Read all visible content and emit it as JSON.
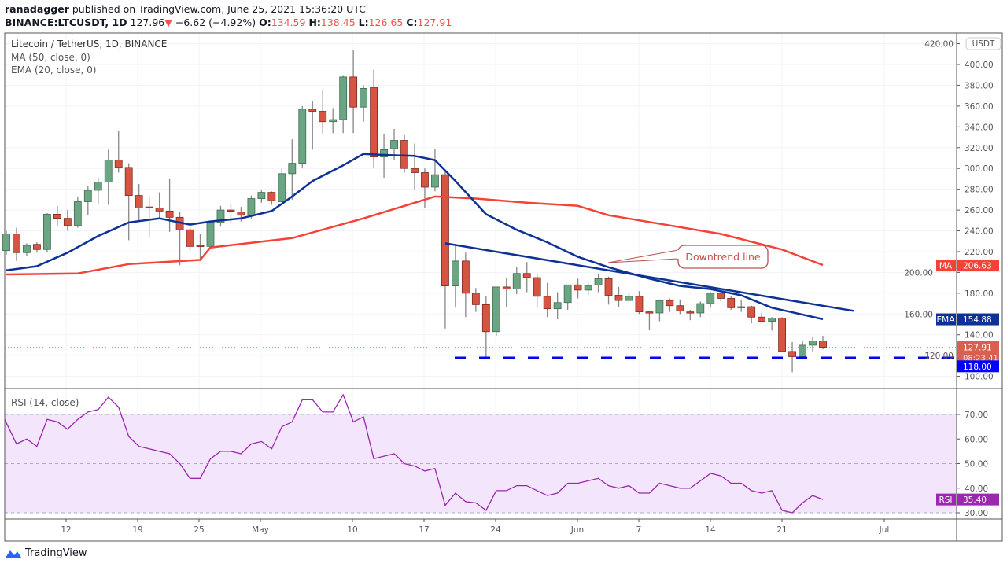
{
  "header": {
    "author": "ranadagger",
    "published_text": "published on TradingView.com, June 25, 2021 15:36:20 UTC",
    "symbol": "BINANCE:LTCUSDT, 1D",
    "last": "127.96",
    "change": "−6.62 (−4.92%)",
    "o_label": "O:",
    "o": "134.59",
    "h_label": "H:",
    "h": "138.45",
    "l_label": "L:",
    "l": "126.65",
    "c_label": "C:",
    "c": "127.91"
  },
  "legend": {
    "title": "Litecoin / TetherUS, 1D, BINANCE",
    "ma": "MA (50, close, 0)",
    "ema": "EMA (20, close, 0)",
    "rsi": "RSI (14, close)"
  },
  "footer": {
    "brand": "TradingView"
  },
  "colors": {
    "up": "#6ba583",
    "down": "#d75442",
    "ema": "#0d3196",
    "ma": "#f44336",
    "rsi": "#9c27b0",
    "support": "#0000ff"
  },
  "chart_data": [
    {
      "type": "candlestick",
      "title": "Litecoin / TetherUS, 1D, BINANCE",
      "currency_label": "USDT",
      "x_ticks": [
        "12",
        "19",
        "25",
        "May",
        "10",
        "17",
        "24",
        "Jun",
        "7",
        "14",
        "21",
        "Jul"
      ],
      "y_ticks": [
        "420.00",
        "400.00",
        "380.00",
        "360.00",
        "340.00",
        "320.00",
        "300.00",
        "280.00",
        "260.00",
        "240.00",
        "220.00",
        "200.00",
        "180.00",
        "160.00",
        "140.00",
        "120.00",
        "100.00"
      ],
      "ylim": [
        95,
        420
      ],
      "ohlc": [
        [
          221,
          240,
          217,
          237
        ],
        [
          237,
          243,
          211,
          219
        ],
        [
          219,
          228,
          216,
          226
        ],
        [
          227,
          229,
          219,
          222
        ],
        [
          222,
          257,
          219,
          256
        ],
        [
          256,
          264,
          244,
          252
        ],
        [
          252,
          260,
          240,
          245
        ],
        [
          245,
          273,
          243,
          268
        ],
        [
          268,
          283,
          255,
          279
        ],
        [
          279,
          291,
          266,
          287
        ],
        [
          287,
          318,
          265,
          308
        ],
        [
          308,
          336,
          296,
          301
        ],
        [
          301,
          305,
          231,
          274
        ],
        [
          274,
          285,
          250,
          262
        ],
        [
          263,
          273,
          234,
          262
        ],
        [
          262,
          277,
          251,
          259
        ],
        [
          259,
          290,
          239,
          253
        ],
        [
          253,
          258,
          207,
          241
        ],
        [
          241,
          243,
          221,
          225
        ],
        [
          226,
          237,
          211,
          225
        ],
        [
          225,
          249,
          223,
          248
        ],
        [
          248,
          264,
          244,
          260
        ],
        [
          260,
          266,
          248,
          259
        ],
        [
          258,
          263,
          249,
          255
        ],
        [
          255,
          274,
          252,
          271
        ],
        [
          271,
          279,
          267,
          277
        ],
        [
          277,
          278,
          265,
          269
        ],
        [
          268,
          300,
          268,
          295
        ],
        [
          295,
          328,
          270,
          305
        ],
        [
          305,
          360,
          301,
          357
        ],
        [
          357,
          365,
          318,
          355
        ],
        [
          355,
          375,
          333,
          345
        ],
        [
          345,
          358,
          334,
          347
        ],
        [
          347,
          389,
          334,
          388
        ],
        [
          388,
          414,
          334,
          359
        ],
        [
          359,
          380,
          345,
          377
        ],
        [
          378,
          395,
          301,
          311
        ],
        [
          311,
          333,
          291,
          318
        ],
        [
          319,
          338,
          308,
          327
        ],
        [
          327,
          332,
          296,
          300
        ],
        [
          300,
          324,
          280,
          296
        ],
        [
          296,
          300,
          262,
          282
        ],
        [
          282,
          319,
          278,
          294
        ],
        [
          294,
          299,
          146,
          187
        ],
        [
          187,
          226,
          167,
          211
        ],
        [
          211,
          219,
          157,
          180
        ],
        [
          180,
          185,
          162,
          169
        ],
        [
          169,
          177,
          118,
          143
        ],
        [
          143,
          186,
          139,
          186
        ],
        [
          186,
          195,
          167,
          184
        ],
        [
          184,
          205,
          179,
          199
        ],
        [
          199,
          210,
          181,
          195
        ],
        [
          195,
          199,
          166,
          177
        ],
        [
          177,
          190,
          157,
          165
        ],
        [
          165,
          181,
          155,
          171
        ],
        [
          171,
          188,
          164,
          188
        ],
        [
          188,
          194,
          175,
          183
        ],
        [
          183,
          191,
          178,
          187
        ],
        [
          188,
          199,
          181,
          194
        ],
        [
          194,
          196,
          169,
          178
        ],
        [
          178,
          186,
          167,
          173
        ],
        [
          173,
          180,
          172,
          177
        ],
        [
          177,
          182,
          160,
          162
        ],
        [
          162,
          163,
          145,
          161
        ],
        [
          161,
          174,
          153,
          173
        ],
        [
          173,
          175,
          162,
          168
        ],
        [
          168,
          174,
          160,
          163
        ],
        [
          162,
          164,
          154,
          161
        ],
        [
          161,
          172,
          157,
          170
        ],
        [
          170,
          181,
          166,
          180
        ],
        [
          180,
          181,
          172,
          175
        ],
        [
          175,
          177,
          164,
          166
        ],
        [
          166,
          174,
          162,
          167
        ],
        [
          167,
          168,
          151,
          157
        ],
        [
          157,
          161,
          153,
          153
        ],
        [
          153,
          157,
          144,
          156
        ],
        [
          156,
          157,
          124,
          124
        ],
        [
          124,
          133,
          104,
          119
        ],
        [
          119,
          134,
          118,
          130
        ],
        [
          130,
          138,
          124,
          134
        ],
        [
          134,
          139,
          126,
          128
        ]
      ],
      "ema20": [
        [
          0,
          202
        ],
        [
          3,
          206
        ],
        [
          6,
          219
        ],
        [
          9,
          235
        ],
        [
          12,
          248
        ],
        [
          15,
          252
        ],
        [
          18,
          246
        ],
        [
          20,
          249
        ],
        [
          23,
          252
        ],
        [
          26,
          259
        ],
        [
          28,
          273
        ],
        [
          30,
          288
        ],
        [
          33,
          303
        ],
        [
          35,
          314
        ],
        [
          37,
          313
        ],
        [
          40,
          312
        ],
        [
          42,
          308
        ],
        [
          44,
          288
        ],
        [
          47,
          256
        ],
        [
          50,
          241
        ],
        [
          53,
          229
        ],
        [
          56,
          215
        ],
        [
          59,
          205
        ],
        [
          63,
          194
        ],
        [
          66,
          187
        ],
        [
          69,
          184
        ],
        [
          72,
          178
        ],
        [
          75,
          166
        ],
        [
          80,
          155
        ]
      ],
      "ma50": [
        [
          0,
          198
        ],
        [
          7,
          199
        ],
        [
          12,
          208
        ],
        [
          19,
          212
        ],
        [
          20,
          224
        ],
        [
          28,
          233
        ],
        [
          35,
          252
        ],
        [
          42,
          273
        ],
        [
          46,
          271
        ],
        [
          51,
          267
        ],
        [
          56,
          264
        ],
        [
          59,
          255
        ],
        [
          70,
          237
        ],
        [
          76,
          222
        ],
        [
          80,
          207
        ]
      ],
      "downtrend_line": {
        "from": [
          43,
          228
        ],
        "to": [
          83,
          163
        ],
        "annotation": "Downtrend line"
      },
      "support_level": 118.0,
      "current_price": 127.91,
      "badges": {
        "ma": {
          "label": "MA",
          "value": "206.63"
        },
        "ema": {
          "label": "EMA",
          "value": "154.88"
        },
        "price": {
          "value": "127.91",
          "countdown": "08:23:41"
        },
        "support": {
          "value": "118.00"
        }
      }
    },
    {
      "type": "line",
      "title": "RSI (14, close)",
      "y_ticks": [
        "70.00",
        "60.00",
        "50.00",
        "40.00",
        "30.00"
      ],
      "band": [
        30,
        70
      ],
      "values": [
        68,
        58,
        60,
        57,
        68,
        67,
        64,
        68,
        71,
        72,
        77,
        73,
        61,
        57,
        56,
        55,
        54,
        50,
        44,
        44,
        52,
        55,
        55,
        54,
        58,
        59,
        56,
        65,
        67,
        76,
        76,
        71,
        71,
        78,
        67,
        69,
        52,
        53,
        54,
        50,
        49,
        47,
        48,
        33,
        38,
        34.5,
        34,
        31,
        39,
        39,
        41,
        41,
        39,
        37,
        38,
        42,
        42,
        43,
        44,
        41,
        40,
        41,
        38,
        38,
        42,
        41,
        40,
        40,
        43,
        46,
        45,
        42,
        42,
        39,
        38,
        39,
        31,
        30,
        34,
        37,
        35.4
      ],
      "badge": {
        "label": "RSI",
        "value": "35.40"
      }
    }
  ]
}
